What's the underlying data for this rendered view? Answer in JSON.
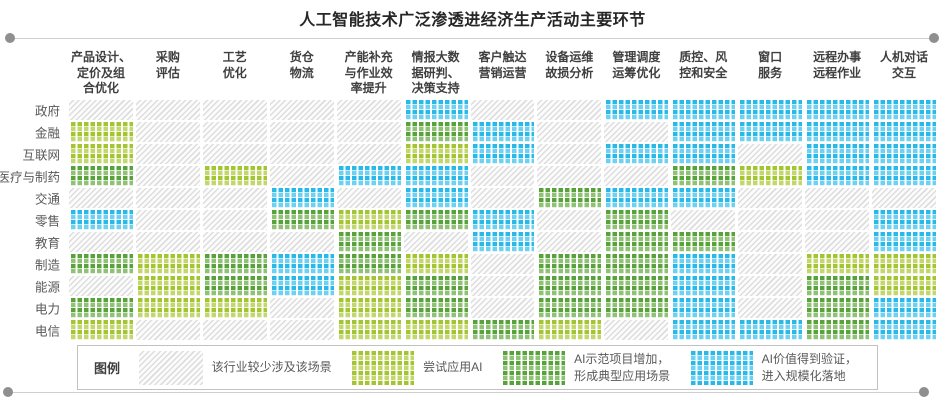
{
  "title": "人工智能技术广泛渗透进经济生产活动主要环节",
  "legend": {
    "label": "图例",
    "items": [
      {
        "key": "none",
        "label": "该行业较少涉及该场景"
      },
      {
        "key": "trial",
        "label": "尝试应用AI"
      },
      {
        "key": "demo",
        "label": "AI示范项目增加，\n形成典型应用场景"
      },
      {
        "key": "scale",
        "label": "AI价值得到验证，\n进入规模化落地"
      }
    ]
  },
  "colors": {
    "none_stripe": "#dddddd",
    "trial_main": "#a2c531",
    "demo_main": "#58a23c",
    "scale_main": "#29b9e9",
    "rule": "#cfcfcf",
    "dot": "#8f8f8f"
  },
  "chart_data": {
    "type": "heatmap",
    "title": "人工智能技术广泛渗透进经济生产活动主要环节",
    "columns": [
      "产品设计、\n定价及组\n合优化",
      "采购\n评估",
      "工艺\n优化",
      "货仓\n物流",
      "产能补充\n与作业效\n率提升",
      "情报大数\n据研判、\n决策支持",
      "客户触达\n营销运营",
      "设备运维\n故损分析",
      "管理调度\n运筹优化",
      "质控、风\n控和安全",
      "窗口\n服务",
      "远程办事\n远程作业",
      "人机对话\n交互"
    ],
    "rows": [
      "政府",
      "金融",
      "互联网",
      "医疗与制药",
      "交通",
      "零售",
      "教育",
      "制造",
      "能源",
      "电力",
      "电信"
    ],
    "levels": {
      "none": "该行业较少涉及该场景",
      "trial": "尝试应用AI",
      "demo": "AI示范项目增加，形成典型应用场景",
      "scale": "AI价值得到验证，进入规模化落地"
    },
    "matrix": [
      [
        "none",
        "none",
        "none",
        "none",
        "none",
        "scale",
        "none",
        "none",
        "scale",
        "scale",
        "scale",
        "scale",
        "scale"
      ],
      [
        "trial",
        "none",
        "none",
        "none",
        "none",
        "demo",
        "scale",
        "none",
        "none",
        "scale",
        "scale",
        "scale",
        "scale"
      ],
      [
        "trial",
        "none",
        "none",
        "none",
        "none",
        "trial",
        "scale",
        "none",
        "scale",
        "scale",
        "none",
        "scale",
        "scale"
      ],
      [
        "demo",
        "none",
        "trial",
        "none",
        "scale",
        "scale",
        "none",
        "none",
        "none",
        "demo",
        "trial",
        "scale",
        "scale"
      ],
      [
        "none",
        "none",
        "none",
        "scale",
        "none",
        "scale",
        "none",
        "demo",
        "scale",
        "scale",
        "none",
        "none",
        "none"
      ],
      [
        "scale",
        "none",
        "none",
        "demo",
        "trial",
        "demo",
        "scale",
        "none",
        "demo",
        "none",
        "none",
        "none",
        "scale"
      ],
      [
        "none",
        "none",
        "none",
        "none",
        "demo",
        "none",
        "scale",
        "none",
        "demo",
        "demo",
        "none",
        "none",
        "scale"
      ],
      [
        "demo",
        "trial",
        "demo",
        "scale",
        "demo",
        "trial",
        "none",
        "demo",
        "demo",
        "scale",
        "none",
        "trial",
        "trial"
      ],
      [
        "none",
        "trial",
        "demo",
        "scale",
        "trial",
        "demo",
        "none",
        "demo",
        "demo",
        "scale",
        "none",
        "demo",
        "trial"
      ],
      [
        "demo",
        "trial",
        "trial",
        "none",
        "trial",
        "demo",
        "none",
        "demo",
        "demo",
        "scale",
        "none",
        "demo",
        "scale"
      ],
      [
        "trial",
        "none",
        "none",
        "none",
        "trial",
        "trial",
        "demo",
        "trial",
        "none",
        "scale",
        "scale",
        "demo",
        "scale"
      ]
    ]
  }
}
